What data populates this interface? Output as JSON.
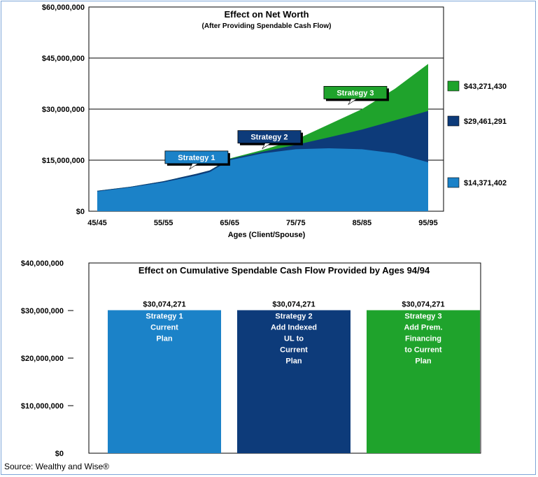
{
  "source": "Source: Wealthy and Wise®",
  "colors": {
    "strategy1": "#1b82c8",
    "strategy2": "#0d3b7a",
    "strategy3": "#1fa32c",
    "callout1": "#1b82c8",
    "callout2": "#0d3b7a",
    "callout3": "#1fa32c"
  },
  "chart_data": [
    {
      "type": "area",
      "title": "Effect on Net Worth",
      "subtitle": "(After Providing Spendable Cash Flow)",
      "xlabel": "Ages (Client/Spouse)",
      "ylabel": "",
      "ylim": [
        0,
        60000000
      ],
      "yticks": [
        0,
        15000000,
        30000000,
        45000000,
        60000000
      ],
      "ytick_labels": [
        "$0",
        "$15,000,000",
        "$30,000,000",
        "$45,000,000",
        "$60,000,000"
      ],
      "xlim": [
        45,
        95
      ],
      "xticks": [
        45,
        55,
        65,
        75,
        85,
        95
      ],
      "xtick_labels": [
        "45/45",
        "55/55",
        "65/65",
        "75/75",
        "85/85",
        "95/95"
      ],
      "grid": "horizontal",
      "x": [
        45,
        50,
        55,
        60,
        62,
        65,
        70,
        75,
        80,
        85,
        90,
        95
      ],
      "series": [
        {
          "name": "Strategy 1",
          "values": [
            5800000,
            7000000,
            8500000,
            10500000,
            11500000,
            15000000,
            17000000,
            18200000,
            18500000,
            18200000,
            17000000,
            14371402
          ]
        },
        {
          "name": "Strategy 2",
          "values": [
            6000000,
            7200000,
            8800000,
            11000000,
            12000000,
            15300000,
            17500000,
            19500000,
            21700000,
            24000000,
            26700000,
            29461291
          ]
        },
        {
          "name": "Strategy 3",
          "values": [
            6000000,
            7200000,
            8800000,
            11000000,
            12000000,
            15500000,
            18000000,
            21000000,
            25500000,
            30000000,
            36000000,
            43271430
          ]
        }
      ],
      "end_labels": [
        "$43,271,430",
        "$29,461,291",
        "$14,371,402"
      ],
      "callouts": [
        {
          "label": "Strategy 1",
          "x": 60,
          "y": 14000000
        },
        {
          "label": "Strategy 2",
          "x": 71,
          "y": 20000000
        },
        {
          "label": "Strategy 3",
          "x": 84,
          "y": 33000000
        }
      ]
    },
    {
      "type": "bar",
      "title": "Effect on Cumulative Spendable Cash Flow Provided by Ages 94/94",
      "ylim": [
        0,
        40000000
      ],
      "yticks": [
        0,
        10000000,
        20000000,
        30000000,
        40000000
      ],
      "ytick_labels": [
        "$0",
        "$10,000,000",
        "$20,000,000",
        "$30,000,000",
        "$40,000,000"
      ],
      "categories": [
        "Strategy 1",
        "Strategy 2",
        "Strategy 3"
      ],
      "values": [
        30074271,
        30074271,
        30074271
      ],
      "value_labels": [
        "$30,074,271",
        "$30,074,271",
        "$30,074,271"
      ],
      "bar_labels": [
        [
          "Strategy 1",
          "Current",
          "Plan"
        ],
        [
          "Strategy 2",
          "Add Indexed",
          "UL to",
          "Current",
          "Plan"
        ],
        [
          "Strategy 3",
          "Add Prem.",
          "Financing",
          "to Current",
          "Plan"
        ]
      ]
    }
  ]
}
